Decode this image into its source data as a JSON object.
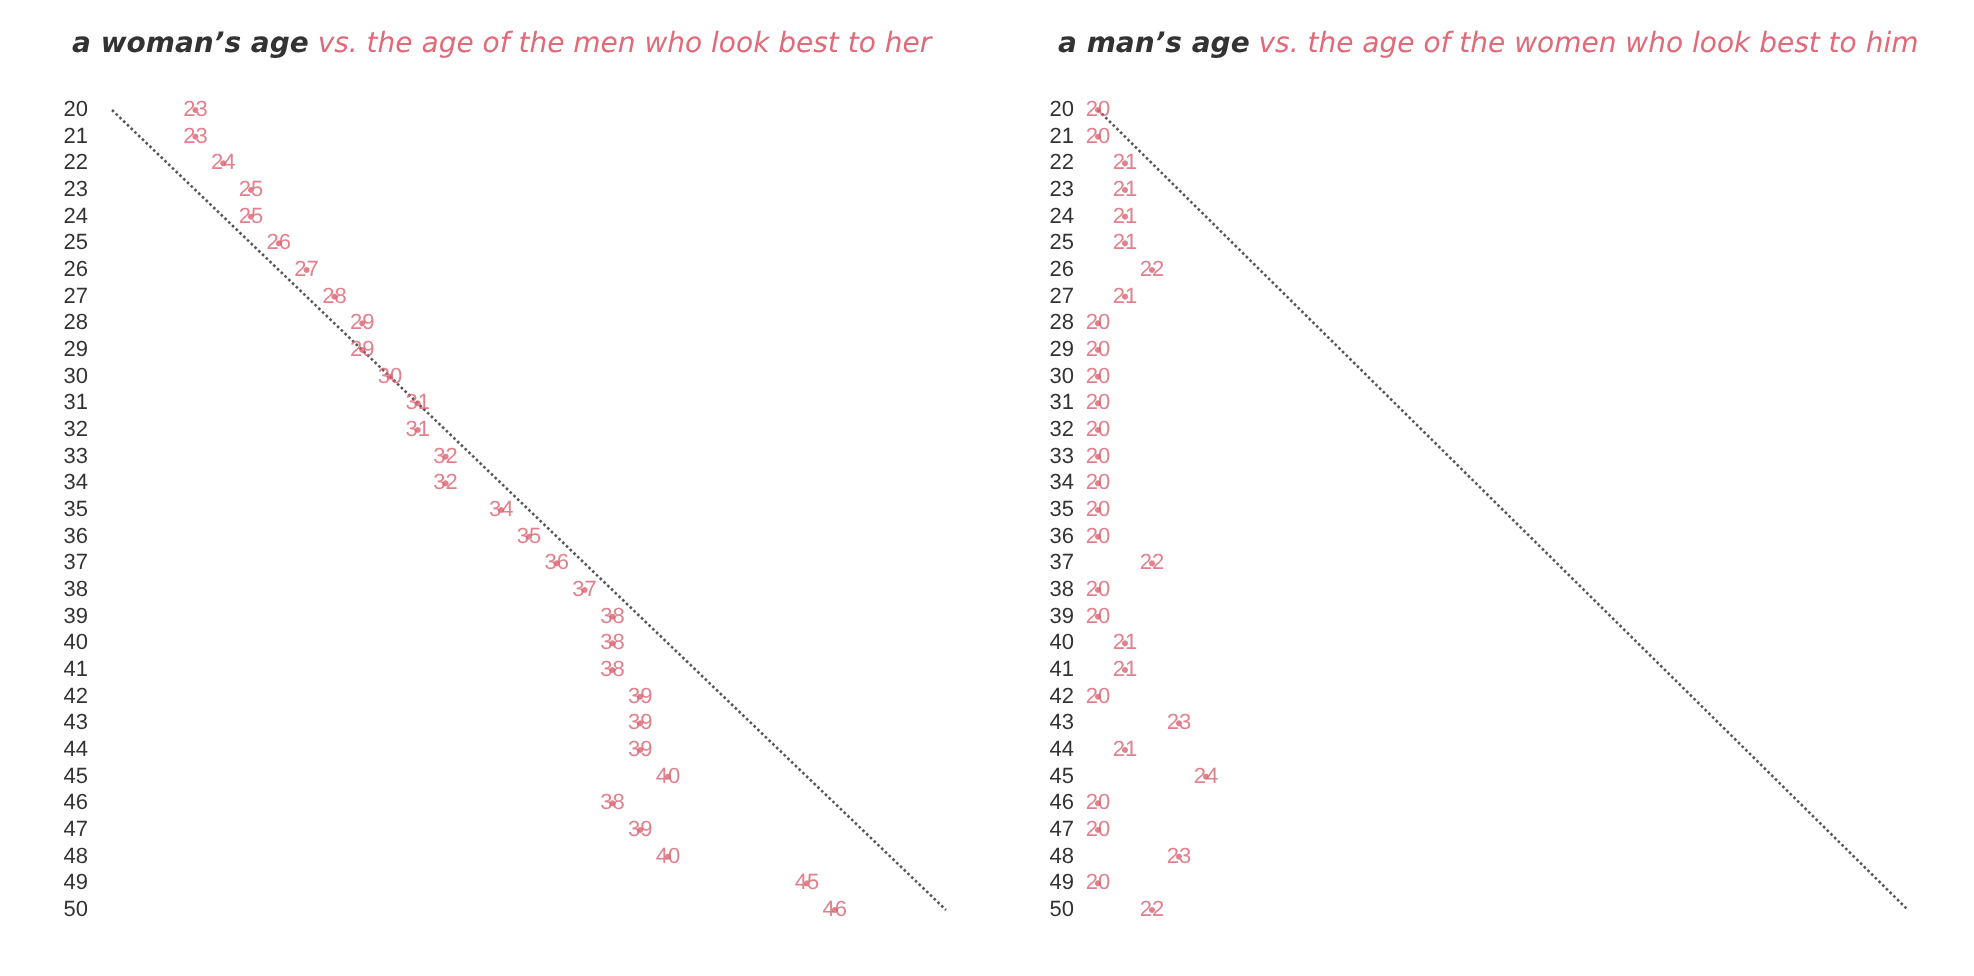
{
  "chart_data": [
    {
      "type": "scatter",
      "title": "a woman’s age",
      "subtitle": "vs. the age of the men who look best to her",
      "orientation": "horizontal",
      "categories": [
        "20",
        "21",
        "22",
        "23",
        "24",
        "25",
        "26",
        "27",
        "28",
        "29",
        "30",
        "31",
        "32",
        "33",
        "34",
        "35",
        "36",
        "37",
        "38",
        "39",
        "40",
        "41",
        "42",
        "43",
        "44",
        "45",
        "46",
        "47",
        "48",
        "49",
        "50"
      ],
      "tick_labels": "y",
      "grid": false,
      "marker": "circle",
      "series": [
        {
          "color": "#d9616f",
          "values": [
            23,
            23,
            24,
            25,
            25,
            26,
            27,
            28,
            29,
            29,
            30,
            31,
            31,
            32,
            32,
            34,
            35,
            36,
            37,
            38,
            38,
            38,
            39,
            39,
            39,
            40,
            38,
            39,
            40,
            45,
            46
          ],
          "value_labels": [
            "23",
            "23",
            "24",
            "25",
            "25",
            "26",
            "27",
            "28",
            "29",
            "29",
            "30",
            "31",
            "31",
            "32",
            "32",
            "34",
            "35",
            "36",
            "37",
            "38",
            "38",
            "38",
            "39",
            "39",
            "39",
            "40",
            "38",
            "39",
            "40",
            "45",
            "46"
          ]
        },
        {
          "type": "line",
          "color": "#555555",
          "line_style": "dotted",
          "marker": "none",
          "values": [
            20,
            21,
            22,
            23,
            24,
            25,
            26,
            27,
            28,
            29,
            30,
            31,
            32,
            33,
            34,
            35,
            36,
            37,
            38,
            39,
            40,
            41,
            42,
            43,
            44,
            45,
            46,
            47,
            48,
            49,
            50
          ]
        }
      ]
    },
    {
      "type": "scatter",
      "title": "a man’s age",
      "subtitle": "vs. the age of the women who look best to him",
      "orientation": "horizontal",
      "categories": [
        "20",
        "21",
        "22",
        "23",
        "24",
        "25",
        "26",
        "27",
        "28",
        "29",
        "30",
        "31",
        "32",
        "33",
        "34",
        "35",
        "36",
        "37",
        "38",
        "39",
        "40",
        "41",
        "42",
        "43",
        "44",
        "45",
        "46",
        "47",
        "48",
        "49",
        "50"
      ],
      "tick_labels": "y",
      "grid": false,
      "marker": "circle",
      "series": [
        {
          "color": "#d9616f",
          "values": [
            20,
            20,
            21,
            21,
            21,
            21,
            22,
            21,
            20,
            20,
            20,
            20,
            20,
            20,
            20,
            20,
            20,
            22,
            20,
            20,
            21,
            21,
            20,
            23,
            21,
            24,
            20,
            20,
            23,
            20,
            22
          ],
          "value_labels": [
            "20",
            "20",
            "21",
            "21",
            "21",
            "21",
            "22",
            "21",
            "20",
            "20",
            "20",
            "20",
            "20",
            "20",
            "20",
            "20",
            "20",
            "22",
            "20",
            "20",
            "21",
            "21",
            "20",
            "23",
            "21",
            "24",
            "20",
            "20",
            "23",
            "20",
            "22"
          ]
        },
        {
          "type": "line",
          "color": "#555555",
          "line_style": "dotted",
          "marker": "none",
          "values": [
            20,
            21,
            22,
            23,
            24,
            25,
            26,
            27,
            28,
            29,
            30,
            31,
            32,
            33,
            34,
            35,
            36,
            37,
            38,
            39,
            40,
            41,
            42,
            43,
            44,
            45,
            46,
            47,
            48,
            49,
            50
          ]
        }
      ]
    }
  ]
}
